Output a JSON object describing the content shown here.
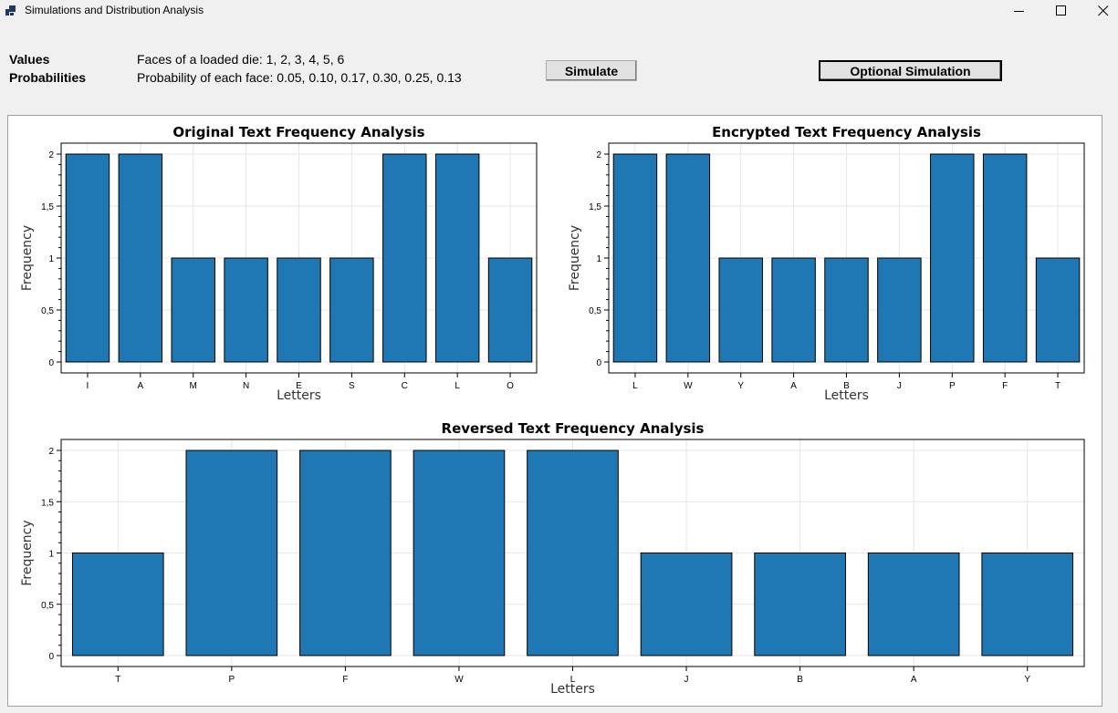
{
  "window": {
    "title": "Simulations and Distribution Analysis",
    "minimize_glyph": "minimize-icon",
    "maximize_glyph": "maximize-icon",
    "close_glyph": "close-icon"
  },
  "info": {
    "values_label": "Values",
    "values_text": "Faces of a loaded die: 1, 2, 3, 4, 5, 6",
    "probabilities_label": "Probabilities",
    "probabilities_text": "Probability of each face: 0.05, 0.10, 0.17, 0.30, 0.25, 0.13"
  },
  "buttons": {
    "simulate": "Simulate",
    "optional_simulation": "Optional Simulation"
  },
  "colors": {
    "bar_fill": "#1f77b4",
    "bar_stroke": "#000000",
    "grid": "#e6e6e6"
  },
  "chart_data": [
    {
      "type": "bar",
      "title": "Original Text Frequency Analysis",
      "xlabel": "Letters",
      "ylabel": "Frequency",
      "categories": [
        "I",
        "A",
        "M",
        "N",
        "E",
        "S",
        "C",
        "L",
        "O"
      ],
      "values": [
        2,
        2,
        1,
        1,
        1,
        1,
        2,
        2,
        1
      ],
      "ylim": [
        0,
        2
      ],
      "yticks": [
        "0",
        "0,5",
        "1",
        "1,5",
        "2"
      ],
      "grid": true
    },
    {
      "type": "bar",
      "title": "Encrypted Text Frequency Analysis",
      "xlabel": "Letters",
      "ylabel": "Frequency",
      "categories": [
        "L",
        "W",
        "Y",
        "A",
        "B",
        "J",
        "P",
        "F",
        "T"
      ],
      "values": [
        2,
        2,
        1,
        1,
        1,
        1,
        2,
        2,
        1
      ],
      "ylim": [
        0,
        2
      ],
      "yticks": [
        "0",
        "0,5",
        "1",
        "1,5",
        "2"
      ],
      "grid": true
    },
    {
      "type": "bar",
      "title": "Reversed Text Frequency Analysis",
      "xlabel": "Letters",
      "ylabel": "Frequency",
      "categories": [
        "T",
        "P",
        "F",
        "W",
        "L",
        "J",
        "B",
        "A",
        "Y"
      ],
      "values": [
        1,
        2,
        2,
        2,
        2,
        1,
        1,
        1,
        1
      ],
      "ylim": [
        0,
        2
      ],
      "yticks": [
        "0",
        "0,5",
        "1",
        "1,5",
        "2"
      ],
      "grid": true
    }
  ]
}
